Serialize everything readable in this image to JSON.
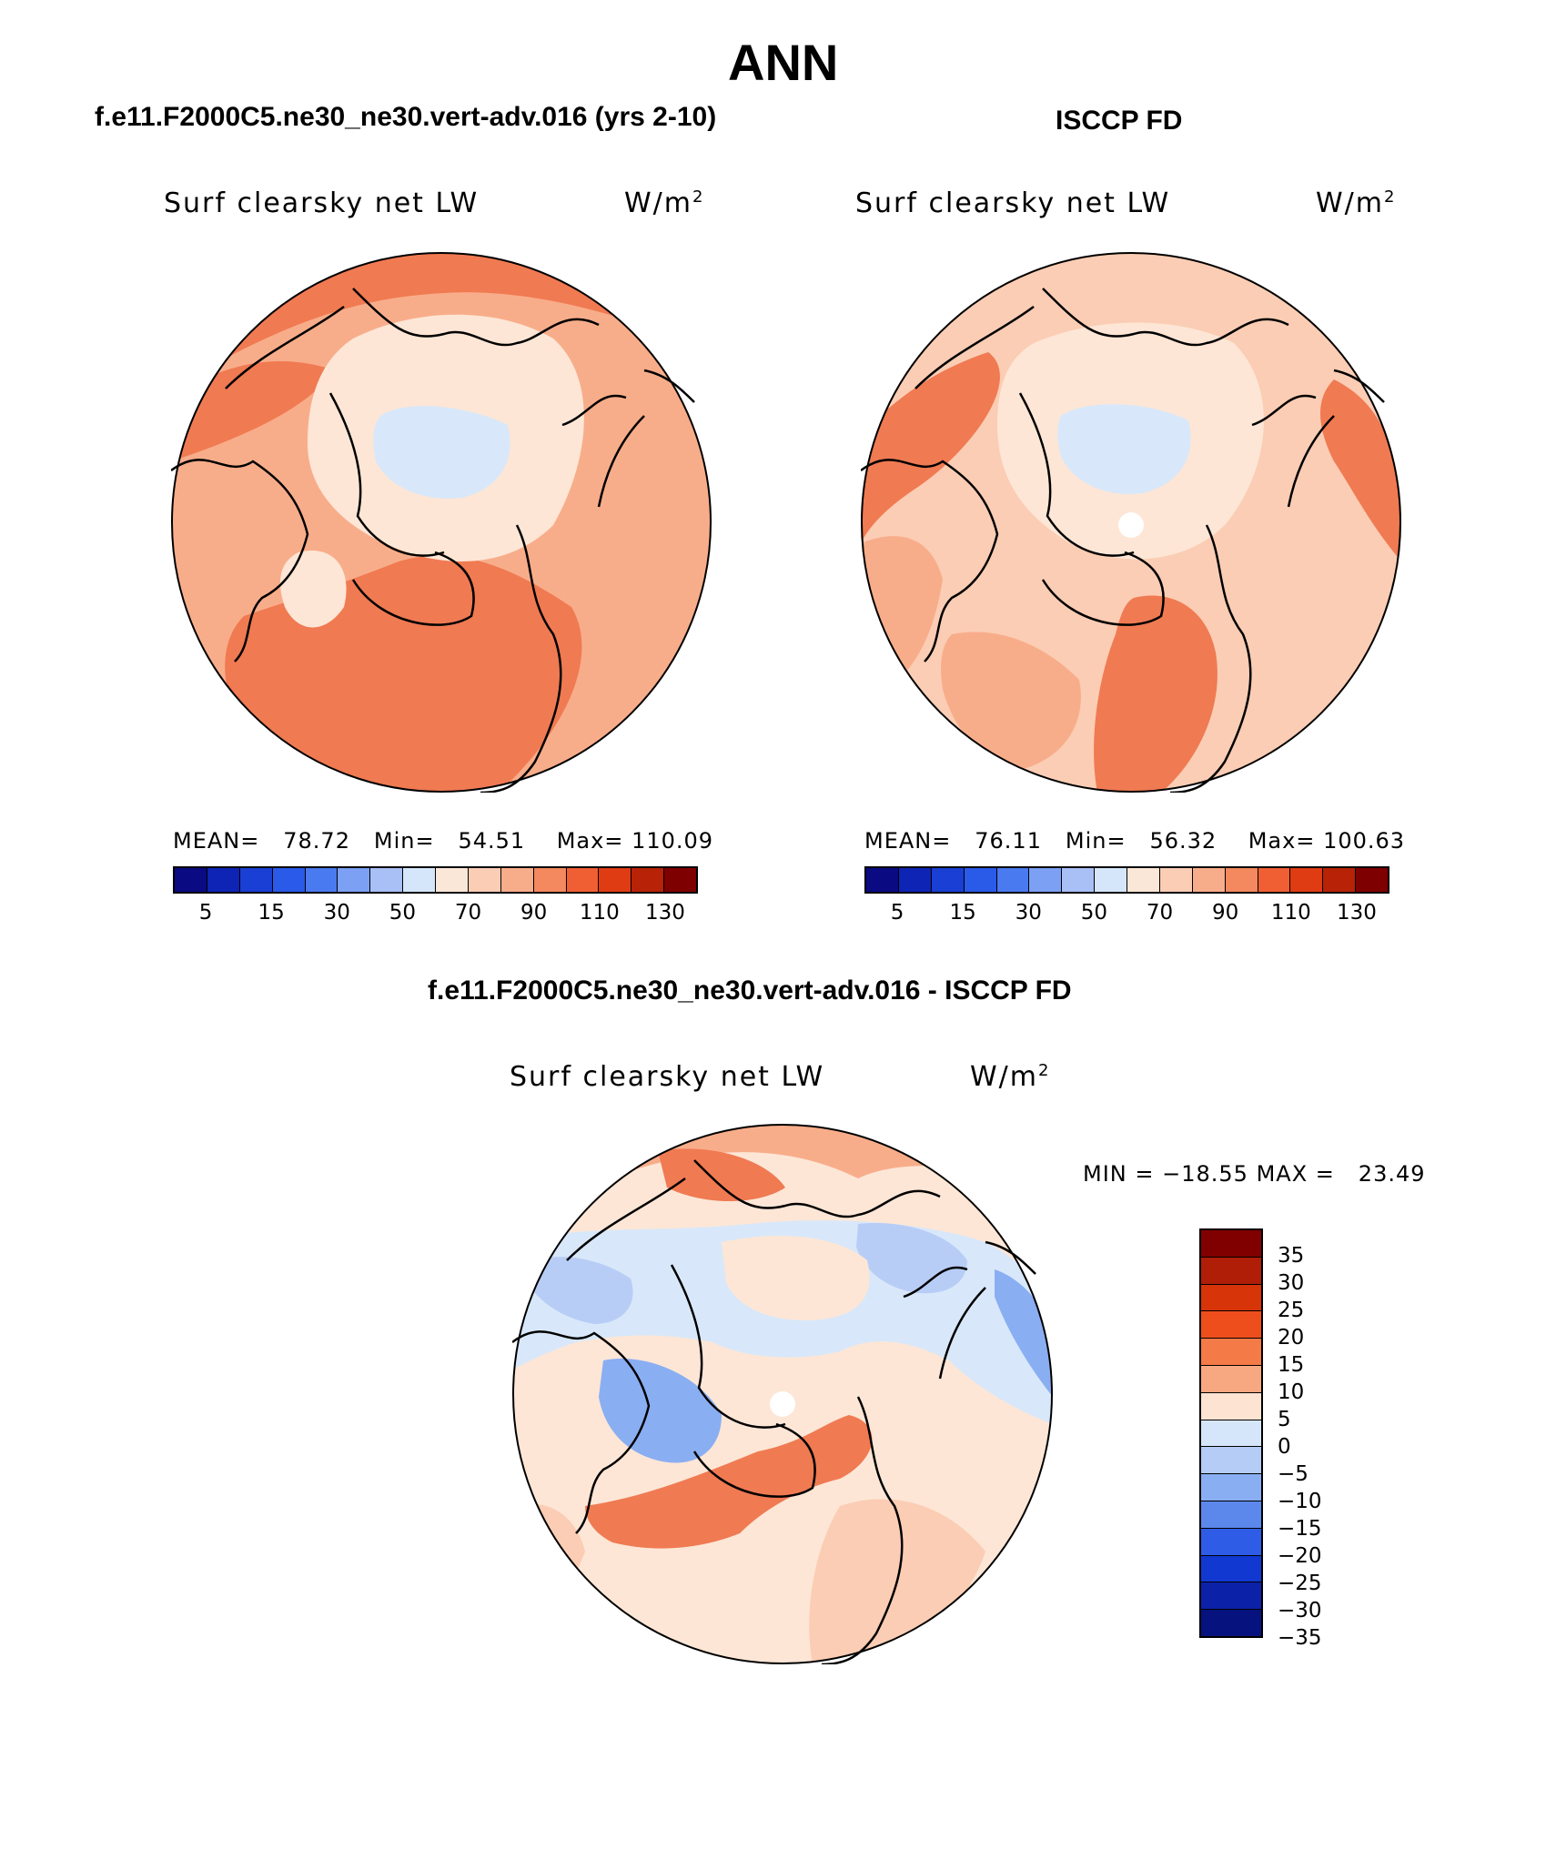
{
  "figure": {
    "season": "ANN",
    "model_title": "f.e11.F2000C5.ne30_ne30.vert-adv.016 (yrs 2-10)",
    "obs_title": "ISCCP FD",
    "diff_title": "f.e11.F2000C5.ne30_ne30.vert-adv.016 - ISCCP FD"
  },
  "panels": {
    "model": {
      "variable": "Surf clearsky net LW",
      "units_base": "W/m",
      "units_exp": "2",
      "mean_label": "MEAN=",
      "mean_value": "78.72",
      "min_label": "Min=",
      "min_value": "54.51",
      "max_label": "Max=",
      "max_value": "110.09"
    },
    "obs": {
      "variable": "Surf clearsky net LW",
      "units_base": "W/m",
      "units_exp": "2",
      "mean_label": "MEAN=",
      "mean_value": "76.11",
      "min_label": "Min=",
      "min_value": "56.32",
      "max_label": "Max=",
      "max_value": "100.63"
    },
    "diff": {
      "variable": "Surf clearsky net LW",
      "units_base": "W/m",
      "units_exp": "2",
      "min_label": "MIN =",
      "min_value": "−18.55",
      "max_label": "MAX =",
      "max_value": "23.49"
    }
  },
  "colorbars": {
    "abs": {
      "colors": [
        "#0a0a82",
        "#0d24b4",
        "#1a3fd4",
        "#2a5ae8",
        "#4a7af0",
        "#7ca0f4",
        "#a8c0f6",
        "#d6e6fa",
        "#fbe7d8",
        "#fbcdb4",
        "#f8ad8a",
        "#f4885e",
        "#f05f34",
        "#e03c14",
        "#b82206",
        "#7e0000"
      ],
      "labels": [
        "5",
        "15",
        "30",
        "50",
        "70",
        "90",
        "110",
        "130"
      ]
    },
    "diff": {
      "colors_top_to_bottom": [
        "#800000",
        "#b01e08",
        "#d8340a",
        "#ee4e1c",
        "#f47a48",
        "#f8a880",
        "#fde4d2",
        "#d6e6fa",
        "#b4ccf6",
        "#8aaef2",
        "#5c88ec",
        "#2e5ce6",
        "#1238d2",
        "#0b22a8",
        "#06127e"
      ],
      "labels_top_to_bottom": [
        "35",
        "30",
        "25",
        "20",
        "15",
        "10",
        "5",
        "0",
        "−5",
        "−10",
        "−15",
        "−20",
        "−25",
        "−30",
        "−35"
      ]
    }
  },
  "legend": {
    "high_pos": "#f07a52",
    "mid_pos": "#f8ad8a",
    "low_pos": "#fbcdb4",
    "near_zero_pos": "#fde6d6",
    "near_zero_neg": "#d8e8fa",
    "low_neg": "#b8cdf6",
    "mid_neg": "#8aaef2",
    "high_neg": "#5c88ec"
  }
}
